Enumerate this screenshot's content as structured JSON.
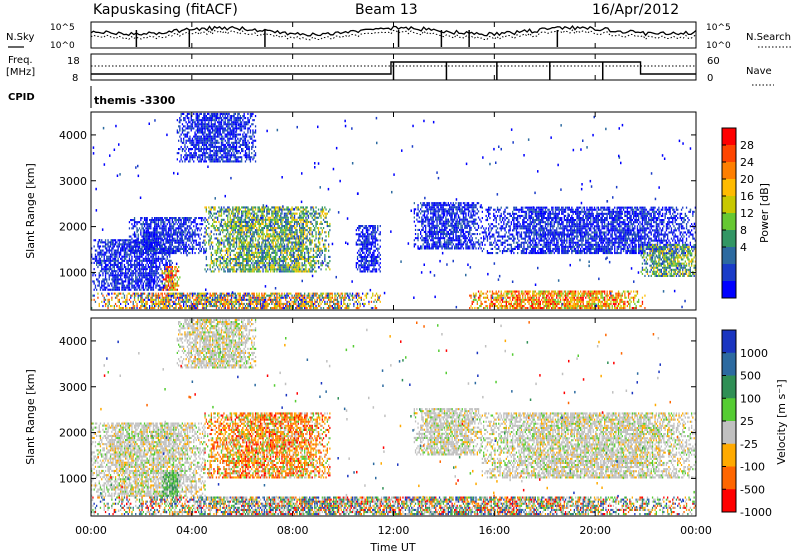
{
  "header": {
    "station": "Kapuskasing (fitACF)",
    "beam": "Beam 13",
    "date": "16/Apr/2012"
  },
  "top_panels": {
    "nsky_label": "N.Sky",
    "nsearch_label": "N.Search",
    "freq_label_1": "Freq.",
    "freq_label_2": "[MHz]",
    "nave_label": "Nave",
    "cpid_label": "CPID",
    "cpid_value": "themis -3300",
    "noise_ticks": [
      "10^5",
      "10^0"
    ],
    "freq_ticks": [
      "18",
      "8"
    ],
    "nave_ticks": [
      "60",
      "0"
    ]
  },
  "xaxis": {
    "label": "Time UT",
    "ticks": [
      "00:00",
      "04:00",
      "08:00",
      "12:00",
      "16:00",
      "20:00",
      "00:00"
    ]
  },
  "power_colorbar": {
    "label": "Power [dB]",
    "ticks": [
      "28",
      "24",
      "20",
      "16",
      "12",
      "8",
      "4"
    ],
    "colors": [
      "#ff0000",
      "#ff4500",
      "#ff7f00",
      "#ffbb00",
      "#c8c800",
      "#66c832",
      "#329664",
      "#2c6aa0",
      "#1a3cc8",
      "#0000ff"
    ]
  },
  "velocity_colorbar": {
    "label": "Velocity [m s⁻¹]",
    "ticks": [
      "1000",
      "500",
      "100",
      "25",
      "-25",
      "-100",
      "-500",
      "-1000"
    ],
    "colors": [
      "#1a35c0",
      "#2c6aa0",
      "#2f8f55",
      "#55cc33",
      "#c0c0c0",
      "#ffaa00",
      "#ff6600",
      "#ff0000"
    ]
  },
  "chart_data": [
    {
      "type": "heatmap",
      "title": "",
      "xlabel": "Time UT",
      "ylabel": "Slant Range [km]",
      "xlim": [
        0,
        24
      ],
      "ylim": [
        180,
        4500
      ],
      "yticks": [
        "1000",
        "2000",
        "3000",
        "4000"
      ],
      "colorbar": "Power [dB]",
      "echo_regions": [
        {
          "t": [
            0.0,
            3.2
          ],
          "r": [
            600,
            1700
          ],
          "value": "low"
        },
        {
          "t": [
            1.5,
            4.5
          ],
          "r": [
            1400,
            2200
          ],
          "value": "low"
        },
        {
          "t": [
            2.8,
            3.5
          ],
          "r": [
            600,
            1100
          ],
          "value": "high"
        },
        {
          "t": [
            4.5,
            9.5
          ],
          "r": [
            1000,
            2400
          ],
          "value": "medium"
        },
        {
          "t": [
            3.4,
            6.5
          ],
          "r": [
            3400,
            4500
          ],
          "value": "low"
        },
        {
          "t": [
            10.5,
            11.5
          ],
          "r": [
            1000,
            2000
          ],
          "value": "low"
        },
        {
          "t": [
            12.8,
            15.5
          ],
          "r": [
            1500,
            2500
          ],
          "value": "low"
        },
        {
          "t": [
            15.5,
            24.0
          ],
          "r": [
            1400,
            2400
          ],
          "value": "low"
        },
        {
          "t": [
            21.8,
            24.0
          ],
          "r": [
            900,
            1600
          ],
          "value": "medium"
        },
        {
          "t": [
            15.0,
            22.0
          ],
          "r": [
            200,
            600
          ],
          "value": "high"
        },
        {
          "t": [
            0.0,
            11.5
          ],
          "r": [
            200,
            550
          ],
          "value": "mixed"
        }
      ]
    },
    {
      "type": "heatmap",
      "title": "",
      "xlabel": "Time UT",
      "ylabel": "Slant Range [km]",
      "xlim": [
        0,
        24
      ],
      "ylim": [
        180,
        4500
      ],
      "yticks": [
        "1000",
        "2000",
        "3000",
        "4000"
      ],
      "colorbar": "Velocity [m s⁻¹]",
      "echo_regions": [
        {
          "t": [
            0.0,
            4.5
          ],
          "r": [
            600,
            2200
          ],
          "value": "near zero"
        },
        {
          "t": [
            2.8,
            3.5
          ],
          "r": [
            600,
            1100
          ],
          "value": "positive"
        },
        {
          "t": [
            4.5,
            9.5
          ],
          "r": [
            1000,
            2400
          ],
          "value": "negative"
        },
        {
          "t": [
            3.4,
            6.5
          ],
          "r": [
            3400,
            4500
          ],
          "value": "near zero"
        },
        {
          "t": [
            12.8,
            15.5
          ],
          "r": [
            1500,
            2500
          ],
          "value": "near zero"
        },
        {
          "t": [
            15.5,
            24.0
          ],
          "r": [
            1000,
            2400
          ],
          "value": "near zero"
        },
        {
          "t": [
            0.0,
            24.0
          ],
          "r": [
            200,
            600
          ],
          "value": "mixed"
        }
      ]
    }
  ]
}
